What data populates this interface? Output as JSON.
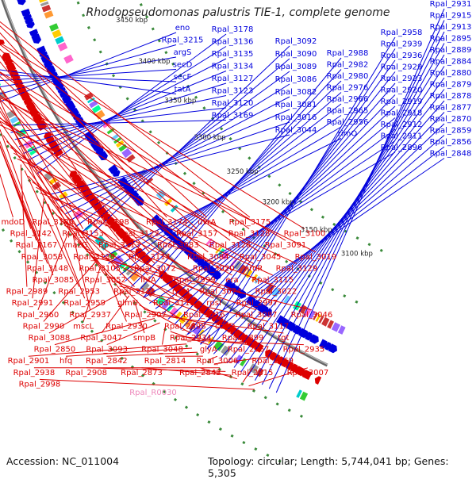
{
  "title": "Rhodopseudomonas palustris TIE-1, complete genome",
  "accession": "Accession: NC_011004",
  "summary": "Topology: circular; Length: 5,744,041 bp; Genes: 5,305",
  "colors": {
    "forward": "#0000dd",
    "reverse": "#dd0000",
    "rna": "#ee88bb",
    "backbone": "#888888",
    "grid": "#3a8a3a"
  },
  "ticks": [
    "3600 kbp",
    "3550 kbp",
    "3500 kbp",
    "3450 kbp",
    "3400 kbp",
    "3350 kbp",
    "3300 kbp",
    "3250 kbp",
    "3200 kbp",
    "3150 kbp",
    "3100 kbp"
  ],
  "forward_labels": [
    "Rpal_2931",
    "Rpal_2915",
    "Rpal_2913",
    "Rpal_2895",
    "Rpal_2889",
    "Rpal_2884",
    "Rpal_2880",
    "Rpal_2879",
    "Rpal_2878",
    "Rpal_2877",
    "Rpal_2870",
    "Rpal_2859",
    "Rpal_2856",
    "Rpal_2848",
    "Rpal_2958",
    "Rpal_2939",
    "Rpal_2936",
    "Rpal_2929",
    "Rpal_2923",
    "Rpal_2920",
    "Rpal_2919",
    "Rpal_2918",
    "Rpal_2912",
    "Rpal_2911",
    "Rpal_2896",
    "Rpal_2988",
    "Rpal_2982",
    "Rpal_2980",
    "Rpal_2976",
    "Rpal_2966",
    "Rpal_2965",
    "Rpal_2956",
    "rimO",
    "Rpal_3092",
    "Rpal_3090",
    "Rpal_3089",
    "Rpal_3086",
    "Rpal_3082",
    "Rpal_3081",
    "Rpal_3016",
    "Rpal_3044",
    "Rpal_3178",
    "Rpal_3136",
    "Rpal_3135",
    "Rpal_3134",
    "Rpal_3127",
    "Rpal_3123",
    "Rpal_3120",
    "Rpal_3169",
    "eno",
    "Rpal_3215",
    "argS",
    "secD",
    "secF",
    "tatA"
  ],
  "reverse_labels": [
    "mdoD",
    "Rpal_3180",
    "Rpal_3198",
    "Rpal_3174",
    "uvrA",
    "Rpal_3175",
    "Rpal_3142",
    "Rpal_3153",
    "Rpal_3122",
    "Rpal_3157",
    "Rpal_3128",
    "Rpal_3100",
    "Rpal_3167",
    "mazG",
    "Rpal_3113",
    "Rpal_3083",
    "Rpal_3126",
    "Rpal_3091",
    "Rpal_3058",
    "Rpal_3138",
    "Rpal_3114",
    "Rpal_3084",
    "Rpal_3045",
    "Rpal_3019",
    "Rpal_3148",
    "Rpal_3105",
    "Rpal_3072",
    "Rpal_3020",
    "nrdR",
    "Rpal_3129",
    "Rpal_3085",
    "Rpal_3052",
    "ihfA",
    "Rpal_2999",
    "era",
    "Rpal_3115",
    "Rpal_2989",
    "Rpal_2953",
    "Rpal_3131",
    "rplM",
    "Rpal_3074",
    "Rpal_3022",
    "Rpal_2991",
    "Rpal_2959",
    "glmU",
    "Rpal_3118",
    "rpsI",
    "Rpal_2997",
    "Rpal_2960",
    "Rpal_2937",
    "Rpal_2907",
    "Rpal_3116",
    "Rpal_3087",
    "Rpal_3046",
    "Rpal_2990",
    "mscL",
    "Rpal_2930",
    "Rpal_2898",
    "coaD",
    "Rpal_3117",
    "Rpal_3088",
    "Rpal_3047",
    "smpB",
    "Rpal_2934",
    "Rpal_2899",
    "tgt",
    "Rpal_2850",
    "Rpal_3093",
    "Rpal_3048",
    "glyA",
    "Rpal_2967",
    "Rpal_2935",
    "Rpal_2901",
    "hfq",
    "Rpal_2842",
    "Rpal_2814",
    "Rpal_3006",
    "Rpal_2969",
    "Rpal_2938",
    "Rpal_2908",
    "Rpal_2873",
    "Rpal_2843",
    "Rpal_2815",
    "Rpal_3007",
    "Rpal_2998"
  ],
  "rna_labels": [
    "Rpal_R0030"
  ]
}
